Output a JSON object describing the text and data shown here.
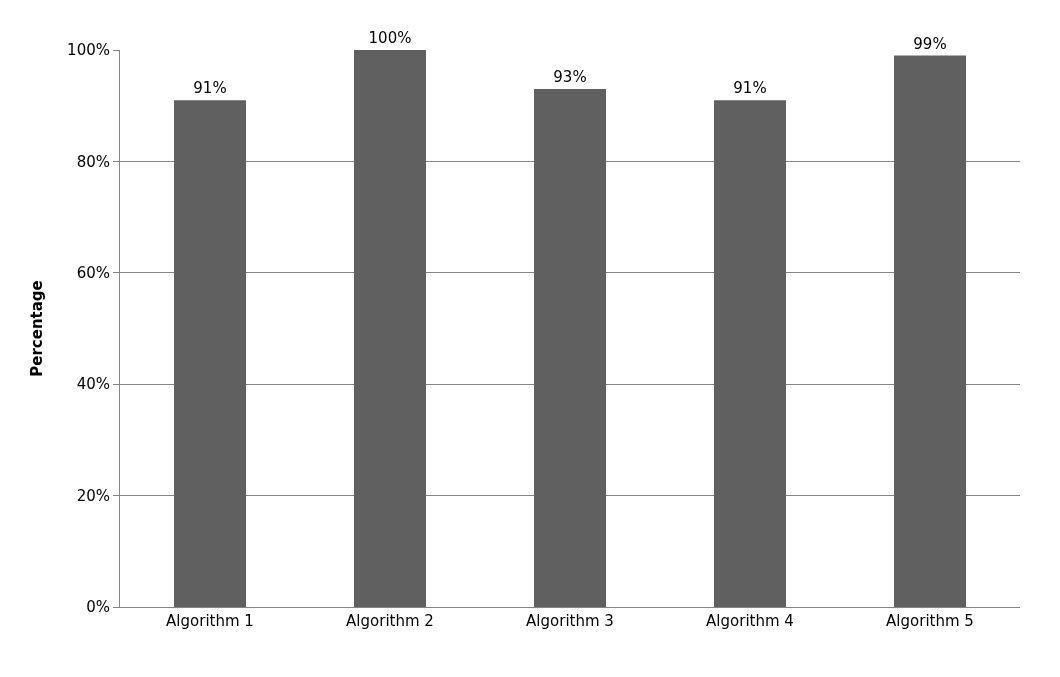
{
  "chart_data": {
    "type": "bar",
    "ylabel": "Percentage",
    "categories": [
      "Algorithm 1",
      "Algorithm 2",
      "Algorithm 3",
      "Algorithm 4",
      "Algorithm 5"
    ],
    "values": [
      91,
      100,
      93,
      91,
      99
    ],
    "value_labels": [
      "91%",
      "100%",
      "93%",
      "91%",
      "99%"
    ],
    "color": "#606060",
    "ylim": [
      0,
      100
    ],
    "yticks": [
      {
        "value": 0,
        "label": "0%"
      },
      {
        "value": 20,
        "label": "20%"
      },
      {
        "value": 40,
        "label": "40%"
      },
      {
        "value": 60,
        "label": "60%"
      },
      {
        "value": 80,
        "label": "80%"
      },
      {
        "value": 100,
        "label": "100%"
      }
    ],
    "grid": "y"
  }
}
